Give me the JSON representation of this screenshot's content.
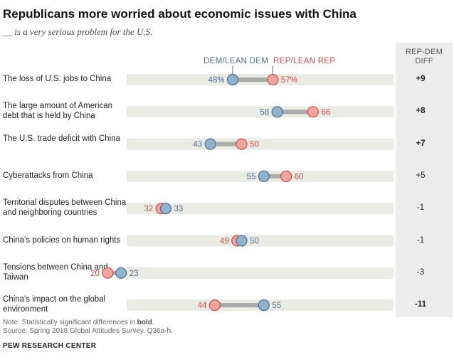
{
  "title": "Republicans more worried about economic issues with China",
  "subtitle": "__ is a very serious problem for the U.S.",
  "diff_header": [
    "REP-DEM",
    "DIFF"
  ],
  "note_prefix": "Note: Statistically significant differences in ",
  "note_bold": "bold",
  "note_suffix": ".",
  "source": "Source: Spring 2018 Global Attitudes Survey. Q36a-h.",
  "org": "PEW RESEARCH CENTER",
  "colors": {
    "dem": "#8fb2cf",
    "dem_stroke": "#4e6d86",
    "rep": "#f0a49c",
    "rep_stroke": "#c8504a",
    "track": "#ebebe6",
    "connector": "#aaaaaa"
  },
  "chart_data": {
    "type": "dot",
    "series": [
      {
        "name": "DEM/LEAN DEM"
      },
      {
        "name": "REP/LEAN REP"
      }
    ],
    "rows": [
      {
        "label": "The loss of U.S. jobs to China",
        "dem": 48,
        "rep": 57,
        "dem_label": "48%",
        "rep_label": "57%",
        "diff": "+9",
        "significant": true
      },
      {
        "label": "The large amount of American debt that is held by China",
        "dem": 58,
        "rep": 66,
        "dem_label": "58",
        "rep_label": "66",
        "diff": "+8",
        "significant": true
      },
      {
        "label": "The U.S. trade deficit with China",
        "dem": 43,
        "rep": 50,
        "dem_label": "43",
        "rep_label": "50",
        "diff": "+7",
        "significant": true
      },
      {
        "label": "Cyberattacks from China",
        "dem": 55,
        "rep": 60,
        "dem_label": "55",
        "rep_label": "60",
        "diff": "+5",
        "significant": false
      },
      {
        "label": "Territorial disputes between China and neighboring countries",
        "dem": 33,
        "rep": 32,
        "dem_label": "33",
        "rep_label": "32",
        "diff": "-1",
        "significant": false
      },
      {
        "label": "China's policies on human rights",
        "dem": 50,
        "rep": 49,
        "dem_label": "50",
        "rep_label": "49",
        "diff": "-1",
        "significant": false
      },
      {
        "label": "Tensions between China and Taiwan",
        "dem": 23,
        "rep": 20,
        "dem_label": "23",
        "rep_label": "20",
        "diff": "-3",
        "significant": false
      },
      {
        "label": "China's impact on the global environment",
        "dem": 55,
        "rep": 44,
        "dem_label": "55",
        "rep_label": "44",
        "diff": "-11",
        "significant": true
      }
    ],
    "xlim": [
      0,
      100
    ]
  }
}
